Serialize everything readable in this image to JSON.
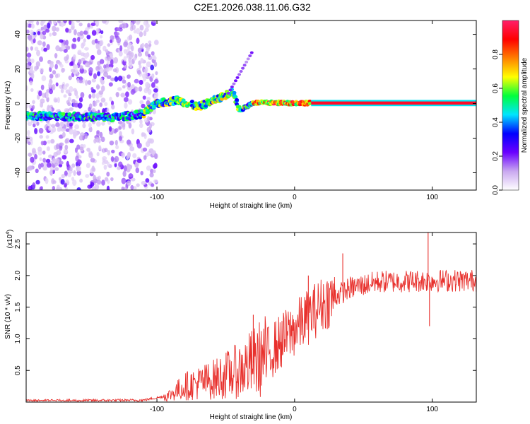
{
  "title": "C2E1.2026.038.11.06.G32",
  "chart_data": [
    {
      "type": "heatmap",
      "xlabel": "Height of straight line (km)",
      "ylabel": "Frequency (Hz)",
      "xlim": [
        -195,
        132
      ],
      "ylim": [
        -50,
        48
      ],
      "xticks": [
        -100,
        0,
        100
      ],
      "yticks": [
        -40,
        -20,
        0,
        20,
        40
      ],
      "colorbar": {
        "label": "Normalized spectral amplitude",
        "range": [
          0,
          1
        ],
        "ticks": [
          0.0,
          0.2,
          0.4,
          0.6,
          0.8
        ],
        "stops": [
          "#ffffff",
          "#c9a8f0",
          "#6a00ff",
          "#0000ff",
          "#00e5ff",
          "#00ff3c",
          "#ffff00",
          "#ff8000",
          "#ff0000",
          "#ff1f6a"
        ]
      },
      "ridge": [
        {
          "x": -195,
          "f": -7.0
        },
        {
          "x": -160,
          "f": -7.5
        },
        {
          "x": -130,
          "f": -8.0
        },
        {
          "x": -110,
          "f": -6.0
        },
        {
          "x": -100,
          "f": 0.0
        },
        {
          "x": -85,
          "f": 2.0
        },
        {
          "x": -70,
          "f": -2.0
        },
        {
          "x": -55,
          "f": 3.0
        },
        {
          "x": -45,
          "f": 7.0
        },
        {
          "x": -40,
          "f": -4.0
        },
        {
          "x": -30,
          "f": 0.5
        },
        {
          "x": 0,
          "f": 0.3
        },
        {
          "x": 132,
          "f": 0.3
        }
      ],
      "strong_band": {
        "x_start": 12,
        "x_end": 132,
        "f": 0.3
      }
    },
    {
      "type": "line",
      "xlabel": "Height of straight line (km)",
      "ylabel": "SNR (10 * v/v)",
      "scale_label": "(x10",
      "scale_exponent": "4",
      "xlim": [
        -195,
        132
      ],
      "ylim": [
        0,
        2.68
      ],
      "xticks": [
        -100,
        0,
        100
      ],
      "yticks": [
        0.5,
        1.0,
        1.5,
        2.0,
        2.5
      ],
      "ytick_labels": [
        "0.5",
        "1.0",
        "1.5",
        "2.0",
        "2.5"
      ],
      "series": [
        {
          "name": "SNR",
          "color": "#e8302c",
          "envelope": [
            {
              "x": -195,
              "y": 0.02
            },
            {
              "x": -110,
              "y": 0.03
            },
            {
              "x": -92,
              "y": 0.1
            },
            {
              "x": -80,
              "y": 0.25
            },
            {
              "x": -60,
              "y": 0.35
            },
            {
              "x": -40,
              "y": 0.5
            },
            {
              "x": -20,
              "y": 0.75
            },
            {
              "x": 0,
              "y": 1.15
            },
            {
              "x": 20,
              "y": 1.55
            },
            {
              "x": 40,
              "y": 1.8
            },
            {
              "x": 60,
              "y": 1.9
            },
            {
              "x": 100,
              "y": 1.92
            },
            {
              "x": 132,
              "y": 1.92
            }
          ],
          "spikes": [
            {
              "x": -30,
              "y": 1.38
            },
            {
              "x": 10,
              "y": 2.0
            },
            {
              "x": 35,
              "y": 2.35
            },
            {
              "x": 97,
              "y": 2.68
            },
            {
              "x": 98,
              "y": 1.2
            }
          ]
        }
      ]
    }
  ]
}
